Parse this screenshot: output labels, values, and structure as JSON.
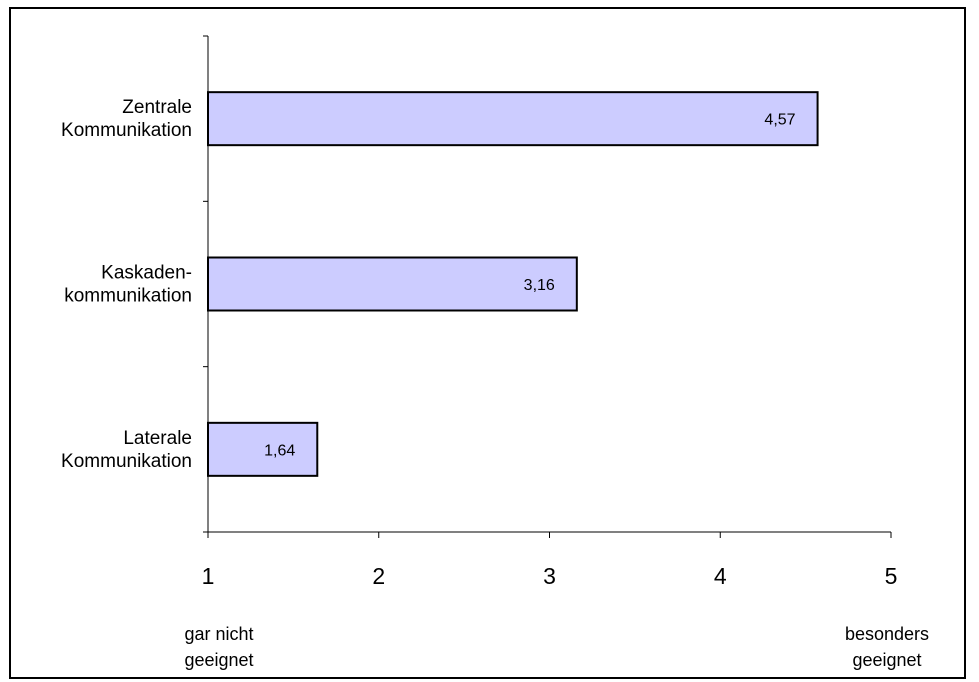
{
  "chart_data": {
    "type": "bar",
    "orientation": "horizontal",
    "categories": [
      [
        "Zentrale",
        "Kommunikation"
      ],
      [
        "Kaskaden-",
        "kommunikation"
      ],
      [
        "Laterale",
        "Kommunikation"
      ]
    ],
    "values": [
      4.57,
      3.16,
      1.64
    ],
    "value_labels": [
      "4,57",
      "3,16",
      "1,64"
    ],
    "xlim": [
      1,
      5
    ],
    "x_ticks": [
      "1",
      "2",
      "3",
      "4",
      "5"
    ],
    "scale_anchors": {
      "low": [
        "gar nicht",
        "geeignet"
      ],
      "high": [
        "besonders",
        "geeignet"
      ]
    },
    "bar_color": "#ccccff",
    "bar_border_color": "#000000",
    "grid": false,
    "legend": "none"
  }
}
